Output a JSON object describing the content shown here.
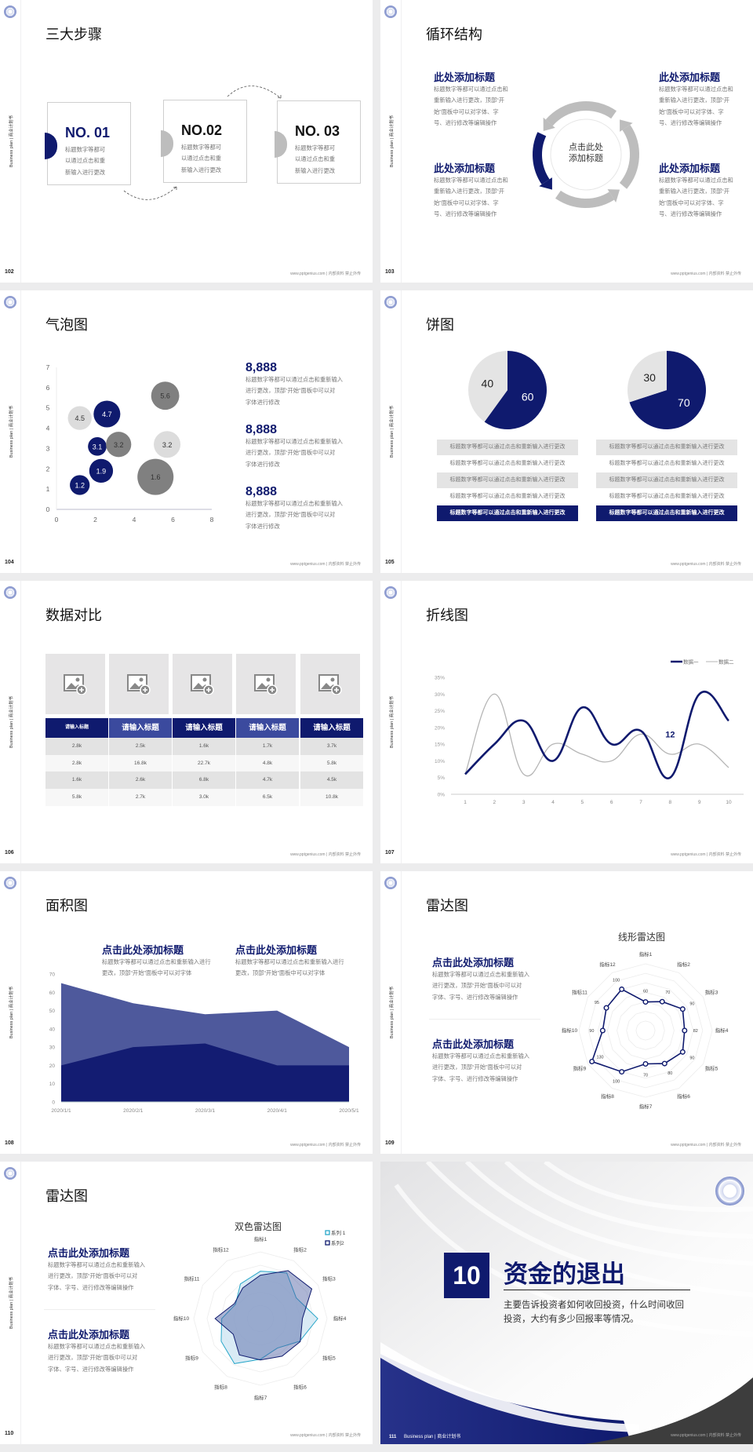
{
  "common": {
    "side_label": "Business plan | 商业计划书",
    "footer": "www.pptgenius.com | 内部资料 禁止外传",
    "logo_icon": "school-emblem-icon"
  },
  "colors": {
    "navy": "#0f1a6e",
    "navy_light": "#3b4a9e",
    "gray": "#bdbdbd",
    "light_gray": "#e4e4e4",
    "dark_gray": "#808080",
    "cyan": "#2aa7c9"
  },
  "slides": {
    "s102": {
      "page": "102",
      "title": "三大步骤",
      "steps": [
        {
          "no": "NO. 01",
          "lines": [
            "标题数字等都可",
            "以通过点击和重",
            "新输入进行更改"
          ]
        },
        {
          "no": "NO.02",
          "lines": [
            "标题数字等都可",
            "以通过点击和重",
            "新输入进行更改"
          ]
        },
        {
          "no": "NO. 03",
          "lines": [
            "标题数字等都可",
            "以通过点击和重",
            "新输入进行更改"
          ]
        }
      ]
    },
    "s103": {
      "page": "103",
      "title": "循环结构",
      "center": [
        "点击此处",
        "添加标题"
      ],
      "blocks": [
        {
          "heading": "此处添加标题",
          "lines": [
            "标题数字等都可以通过点击和",
            "重新输入进行更改，顶部“开",
            "始”面板中可以对字体、字",
            "号、进行修改等编辑操作"
          ]
        },
        {
          "heading": "此处添加标题",
          "lines": [
            "标题数字等都可以通过点击和",
            "重新输入进行更改，顶部“开",
            "始”面板中可以对字体、字",
            "号、进行修改等编辑操作"
          ]
        },
        {
          "heading": "此处添加标题",
          "lines": [
            "标题数字等都可以通过点击和",
            "重新输入进行更改，顶部“开",
            "始”面板中可以对字体、字",
            "号、进行修改等编辑操作"
          ]
        },
        {
          "heading": "此处添加标题",
          "lines": [
            "标题数字等都可以通过点击和",
            "重新输入进行更改，顶部“开",
            "始”面板中可以对字体、字",
            "号、进行修改等编辑操作"
          ]
        }
      ]
    },
    "s104": {
      "page": "104",
      "title": "气泡图",
      "stats": [
        {
          "value": "8,888",
          "lines": [
            "标题数字等都可以通过点击和重新输入",
            "进行更改，顶部“开始”面板中可以对",
            "字体进行修改"
          ]
        },
        {
          "value": "8,888",
          "lines": [
            "标题数字等都可以通过点击和重新输入",
            "进行更改，顶部“开始”面板中可以对",
            "字体进行修改"
          ]
        },
        {
          "value": "8,888",
          "lines": [
            "标题数字等都可以通过点击和重新输入",
            "进行更改，顶部“开始”面板中可以对",
            "字体进行修改"
          ]
        }
      ]
    },
    "s105": {
      "page": "105",
      "title": "饼图",
      "lists": [
        [
          "标题数字等都可以通过点击和重新输入进行更改",
          "标题数字等都可以通过点击和重新输入进行更改",
          "标题数字等都可以通过点击和重新输入进行更改",
          "标题数字等都可以通过点击和重新输入进行更改",
          "标题数字等都可以通过点击和重新输入进行更改"
        ],
        [
          "标题数字等都可以通过点击和重新输入进行更改",
          "标题数字等都可以通过点击和重新输入进行更改",
          "标题数字等都可以通过点击和重新输入进行更改",
          "标题数字等都可以通过点击和重新输入进行更改",
          "标题数字等都可以通过点击和重新输入进行更改"
        ]
      ]
    },
    "s106": {
      "page": "106",
      "title": "数据对比",
      "image_icon": "add-image-icon",
      "headers": [
        "请输入标题",
        "请输入标题",
        "请输入标题",
        "请输入标题",
        "请输入标题"
      ],
      "rows": [
        [
          "2.8k",
          "2.5k",
          "1.6k",
          "1.7k",
          "3.7k"
        ],
        [
          "2.8k",
          "16.8k",
          "22.7k",
          "4.8k",
          "5.8k"
        ],
        [
          "1.6k",
          "2.6k",
          "6.8k",
          "4.7k",
          "4.5k"
        ],
        [
          "5.8k",
          "2.7k",
          "3.0k",
          "6.5k",
          "10.8k"
        ]
      ]
    },
    "s107": {
      "page": "107",
      "title": "折线图"
    },
    "s108": {
      "page": "108",
      "title": "面积图",
      "blocks": [
        {
          "heading": "点击此处添加标题",
          "lines": [
            "标题数字等都可以通过点击和重新输入进行",
            "更改，顶部“开始”面板中可以对字体"
          ]
        },
        {
          "heading": "点击此处添加标题",
          "lines": [
            "标题数字等都可以通过点击和重新输入进行",
            "更改，顶部“开始”面板中可以对字体"
          ]
        }
      ]
    },
    "s109": {
      "page": "109",
      "title": "雷达图",
      "blocks": [
        {
          "heading": "点击此处添加标题",
          "lines": [
            "标题数字等都可以通过点击和重新输入",
            "进行更改，顶部“开始”面板中可以对",
            "字体、字号、进行修改等编辑操作"
          ]
        },
        {
          "heading": "点击此处添加标题",
          "lines": [
            "标题数字等都可以通过点击和重新输入",
            "进行更改，顶部“开始”面板中可以对",
            "字体、字号、进行修改等编辑操作"
          ]
        }
      ]
    },
    "s110": {
      "page": "110",
      "title": "雷达图",
      "blocks": [
        {
          "heading": "点击此处添加标题",
          "lines": [
            "标题数字等都可以通过点击和重新输入",
            "进行更改，顶部“开始”面板中可以对",
            "字体、字号、进行修改等编辑操作"
          ]
        },
        {
          "heading": "点击此处添加标题",
          "lines": [
            "标题数字等都可以通过点击和重新输入",
            "进行更改，顶部“开始”面板中可以对",
            "字体、字号、进行修改等编辑操作"
          ]
        }
      ]
    },
    "s111": {
      "page": "111",
      "number": "10",
      "title": "资金的退出",
      "lines": [
        "主要告诉投资者如何收回投资，什么时间收回",
        "投资，大约有多少回报率等情况。"
      ],
      "footer_left": "Business plan | 商业计划书"
    }
  },
  "chart_data": [
    {
      "type": "scatter",
      "variant": "bubble",
      "xlim": [
        0,
        8
      ],
      "ylim": [
        0,
        7
      ],
      "xticks": [
        "0",
        "2",
        "4",
        "6",
        "8"
      ],
      "yticks": [
        "0",
        "1",
        "2",
        "3",
        "4",
        "5",
        "6",
        "7"
      ],
      "points": [
        {
          "x": 1.2,
          "y": 1.2,
          "size": 1.6,
          "label": "1.2",
          "color": "#0f1a6e"
        },
        {
          "x": 2.3,
          "y": 1.9,
          "size": 2.3,
          "label": "1.9",
          "color": "#0f1a6e"
        },
        {
          "x": 2.1,
          "y": 3.1,
          "size": 1.4,
          "label": "3.1",
          "color": "#0f1a6e"
        },
        {
          "x": 1.2,
          "y": 4.5,
          "size": 2.3,
          "label": "4.5",
          "color": "#dcdcdc"
        },
        {
          "x": 2.6,
          "y": 4.7,
          "size": 2.9,
          "label": "4.7",
          "color": "#0f1a6e"
        },
        {
          "x": 3.2,
          "y": 3.2,
          "size": 2.6,
          "label": "3.2",
          "color": "#808080"
        },
        {
          "x": 5.6,
          "y": 5.6,
          "size": 3.2,
          "label": "5.6",
          "color": "#808080"
        },
        {
          "x": 5.7,
          "y": 3.2,
          "size": 2.9,
          "label": "3.2",
          "color": "#dcdcdc"
        },
        {
          "x": 5.1,
          "y": 1.6,
          "size": 5.3,
          "label": "1.6",
          "color": "#808080"
        }
      ]
    },
    {
      "type": "pie",
      "values": [
        60,
        40
      ],
      "labels": [
        "60",
        "40"
      ],
      "colors": [
        "#0f1a6e",
        "#e4e4e4"
      ]
    },
    {
      "type": "pie",
      "values": [
        70,
        30
      ],
      "labels": [
        "70",
        "30"
      ],
      "colors": [
        "#0f1a6e",
        "#e4e4e4"
      ]
    },
    {
      "type": "line",
      "smooth": true,
      "categories": [
        "1",
        "2",
        "3",
        "4",
        "5",
        "6",
        "7",
        "8",
        "9",
        "10"
      ],
      "ylim": [
        0,
        35
      ],
      "yticks": [
        "0%",
        "5%",
        "10%",
        "15%",
        "20%",
        "25%",
        "30%",
        "35%"
      ],
      "legend": "top-right",
      "series": [
        {
          "name": "数据一",
          "values": [
            6,
            15,
            22,
            10,
            26,
            15,
            19,
            5,
            30,
            22
          ],
          "color": "#0f1a6e"
        },
        {
          "name": "数据二",
          "values": [
            6,
            30,
            6,
            15,
            12,
            10,
            18,
            12,
            15,
            8
          ],
          "color": "#b5b5b5"
        }
      ],
      "annotations": [
        {
          "text": "12",
          "x": "8",
          "y": 18
        }
      ]
    },
    {
      "type": "area",
      "categories": [
        "2020/1/1",
        "2020/2/1",
        "2020/3/1",
        "2020/4/1",
        "2020/5/1"
      ],
      "ylim": [
        0,
        70
      ],
      "yticks": [
        "0",
        "10",
        "20",
        "30",
        "40",
        "50",
        "60",
        "70"
      ],
      "series": [
        {
          "values": [
            65,
            54,
            48,
            50,
            30
          ],
          "color": "#4e599c"
        },
        {
          "values": [
            20,
            30,
            32,
            20,
            20
          ],
          "color": "#131c72"
        }
      ]
    },
    {
      "type": "radar",
      "title": "线形雷达图",
      "axes": [
        "指标1",
        "指标2",
        "指标3",
        "指标4",
        "指标5",
        "指标6",
        "指标7",
        "指标8",
        "指标9",
        "指标10",
        "指标11",
        "指标12"
      ],
      "max": 140,
      "series": [
        {
          "values": [
            60,
            70,
            90,
            82,
            90,
            80,
            70,
            100,
            130,
            90,
            95,
            100
          ],
          "labels": [
            "60",
            "70",
            "90",
            "82",
            "90",
            "80",
            "70",
            "100",
            "130",
            "90",
            "95",
            "100"
          ],
          "color": "#0f1a6e"
        }
      ]
    },
    {
      "type": "radar",
      "title": "双色雷达图",
      "axes": [
        "指标1",
        "指标2",
        "指标3",
        "指标4",
        "指标5",
        "指标6",
        "指标7",
        "指标8",
        "指标9",
        "指标10",
        "指标11",
        "指标12"
      ],
      "max": 100,
      "legend": "top-right",
      "series": [
        {
          "name": "系列 1",
          "values": [
            71,
            79,
            62,
            86,
            68,
            51,
            61,
            78,
            68,
            58,
            43,
            60
          ],
          "color": "#2aa7c9"
        },
        {
          "name": "系列2",
          "values": [
            65,
            83,
            89,
            63,
            69,
            65,
            62,
            63,
            47,
            68,
            45,
            53
          ],
          "color": "#0f1a6e"
        }
      ]
    }
  ]
}
